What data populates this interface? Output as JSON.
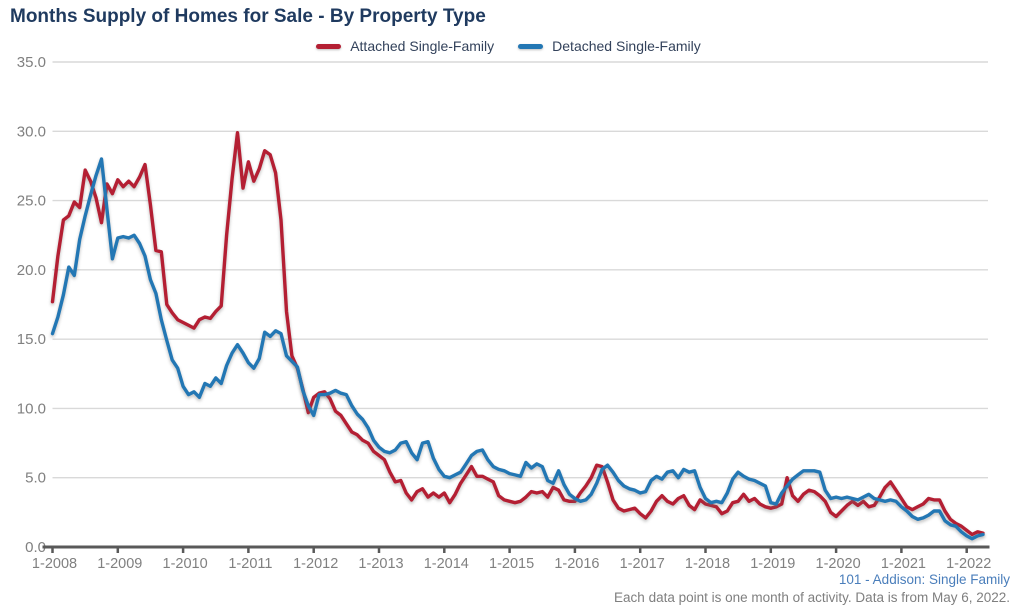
{
  "page": {
    "title": "Months Supply of Homes for Sale - By Property Type",
    "footer_line1": "101 - Addison: Single Family",
    "footer_line2": "Each data point is one month of activity. Data is from May 6, 2022."
  },
  "legend": [
    {
      "label": "Attached Single-Family",
      "color": "#B41F33"
    },
    {
      "label": "Detached Single-Family",
      "color": "#2377B4"
    }
  ],
  "colors": {
    "title": "#1F3A5F",
    "legend_text": "#33425B",
    "gridline": "#D9D9D9",
    "axis_line": "#595959",
    "tick_label": "#808080",
    "footer_link": "#4A7EBB",
    "footer_note": "#7F7F7F",
    "attached": "#B41F33",
    "detached": "#2377B4"
  },
  "chart_data": {
    "type": "line",
    "title": "Months Supply of Homes for Sale - By Property Type",
    "xlabel": "",
    "ylabel": "",
    "interval": "monthly",
    "x_start": "2008-01",
    "x_end": "2022-04",
    "ylim": [
      0,
      35
    ],
    "grid": "horizontal",
    "legend_position": "top-center",
    "y_ticks": [
      0,
      5,
      10,
      15,
      20,
      25,
      30,
      35
    ],
    "y_tick_labels": [
      "0.0",
      "5.0",
      "10.0",
      "15.0",
      "20.0",
      "25.0",
      "30.0",
      "35.0"
    ],
    "x_tick_labels": [
      "1-2008",
      "1-2009",
      "1-2010",
      "1-2011",
      "1-2012",
      "1-2013",
      "1-2014",
      "1-2015",
      "1-2016",
      "1-2017",
      "1-2018",
      "1-2019",
      "1-2020",
      "1-2021",
      "1-2022"
    ],
    "series": [
      {
        "name": "Attached Single-Family",
        "color": "#B41F33",
        "values": [
          17.7,
          21.0,
          23.6,
          23.9,
          24.9,
          24.5,
          27.2,
          26.4,
          25.2,
          23.4,
          26.2,
          25.5,
          26.5,
          26.0,
          26.4,
          26.0,
          26.7,
          27.6,
          24.7,
          21.4,
          21.3,
          17.5,
          16.9,
          16.4,
          16.2,
          16.0,
          15.8,
          16.4,
          16.6,
          16.5,
          17.0,
          17.4,
          22.5,
          26.6,
          29.9,
          25.9,
          27.8,
          26.4,
          27.3,
          28.6,
          28.3,
          27.0,
          23.6,
          17.0,
          13.8,
          12.9,
          11.4,
          9.7,
          10.8,
          11.1,
          11.2,
          10.7,
          9.8,
          9.5,
          8.9,
          8.3,
          8.1,
          7.7,
          7.5,
          6.9,
          6.6,
          6.3,
          5.4,
          4.7,
          4.8,
          3.9,
          3.4,
          4.0,
          4.2,
          3.6,
          3.9,
          3.6,
          3.9,
          3.2,
          3.8,
          4.6,
          5.2,
          5.8,
          5.1,
          5.1,
          4.9,
          4.7,
          3.7,
          3.4,
          3.3,
          3.2,
          3.3,
          3.6,
          4.0,
          3.9,
          4.0,
          3.6,
          4.3,
          4.1,
          3.4,
          3.3,
          3.3,
          3.9,
          4.4,
          5.0,
          5.9,
          5.8,
          4.7,
          3.4,
          2.8,
          2.6,
          2.7,
          2.8,
          2.4,
          2.1,
          2.6,
          3.3,
          3.7,
          3.3,
          3.1,
          3.5,
          3.7,
          3.0,
          2.7,
          3.4,
          3.1,
          3.0,
          2.9,
          2.4,
          2.6,
          3.2,
          3.3,
          3.8,
          3.3,
          3.5,
          3.1,
          2.9,
          2.8,
          2.9,
          3.1,
          5.0,
          3.7,
          3.3,
          3.8,
          4.1,
          4.0,
          3.7,
          3.3,
          2.5,
          2.2,
          2.6,
          3.0,
          3.3,
          3.0,
          3.3,
          2.9,
          3.0,
          3.6,
          4.3,
          4.7,
          4.1,
          3.5,
          2.9,
          2.7,
          2.9,
          3.1,
          3.5,
          3.4,
          3.4,
          2.6,
          2.0,
          1.7,
          1.5,
          1.2,
          0.9,
          1.1,
          1.0
        ]
      },
      {
        "name": "Detached Single-Family",
        "color": "#2377B4",
        "values": [
          15.4,
          16.6,
          18.2,
          20.2,
          19.6,
          22.2,
          23.9,
          25.4,
          26.8,
          28.0,
          24.4,
          20.8,
          22.3,
          22.4,
          22.3,
          22.5,
          21.9,
          21.0,
          19.3,
          18.3,
          16.4,
          14.9,
          13.5,
          12.9,
          11.6,
          11.0,
          11.2,
          10.8,
          11.8,
          11.6,
          12.2,
          11.8,
          13.1,
          14.0,
          14.6,
          14.0,
          13.3,
          12.9,
          13.6,
          15.5,
          15.2,
          15.6,
          15.4,
          13.8,
          13.4,
          13.0,
          11.3,
          10.2,
          9.5,
          11.0,
          11.0,
          11.1,
          11.3,
          11.1,
          11.0,
          10.2,
          9.6,
          9.2,
          8.6,
          7.7,
          7.2,
          6.9,
          6.8,
          7.0,
          7.5,
          7.6,
          6.8,
          6.3,
          7.5,
          7.6,
          6.4,
          5.6,
          5.1,
          5.0,
          5.2,
          5.4,
          6.0,
          6.6,
          6.9,
          7.0,
          6.3,
          5.8,
          5.6,
          5.5,
          5.3,
          5.2,
          5.1,
          6.1,
          5.7,
          6.0,
          5.8,
          4.8,
          4.6,
          5.5,
          4.5,
          3.8,
          3.5,
          3.3,
          3.4,
          3.8,
          4.6,
          5.6,
          5.9,
          5.4,
          4.8,
          4.4,
          4.2,
          4.1,
          3.9,
          4.0,
          4.8,
          5.1,
          4.9,
          5.4,
          5.5,
          5.0,
          5.6,
          5.4,
          5.5,
          4.3,
          3.5,
          3.2,
          3.3,
          3.2,
          3.9,
          4.9,
          5.4,
          5.1,
          4.9,
          4.8,
          4.6,
          4.4,
          3.2,
          3.1,
          3.9,
          4.4,
          4.9,
          5.2,
          5.5,
          5.5,
          5.5,
          5.4,
          4.1,
          3.5,
          3.6,
          3.5,
          3.6,
          3.5,
          3.4,
          3.6,
          3.8,
          3.5,
          3.4,
          3.3,
          3.4,
          3.3,
          2.9,
          2.6,
          2.2,
          2.0,
          2.1,
          2.3,
          2.6,
          2.6,
          1.9,
          1.6,
          1.5,
          1.1,
          0.8,
          0.6,
          0.8,
          0.9
        ]
      }
    ]
  }
}
